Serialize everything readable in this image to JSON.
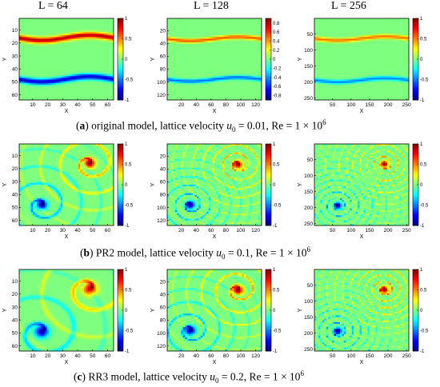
{
  "column_headers": [
    "L = 64",
    "L = 128",
    "L = 256"
  ],
  "captions": [
    {
      "letter": "a",
      "text": " original model, lattice velocity ",
      "u_symbol": "u",
      "u_sub": "0",
      "u_value": " = 0.01, Re = 1 × 10",
      "re_exp": "6"
    },
    {
      "letter": "b",
      "text": " PR2 model, lattice velocity ",
      "u_symbol": "u",
      "u_sub": "0",
      "u_value": " = 0.1, Re = 1 × 10",
      "re_exp": "6"
    },
    {
      "letter": "c",
      "text": " RR3 model, lattice velocity ",
      "u_symbol": "u",
      "u_sub": "0",
      "u_value": " = 0.2, Re = 1 × 10",
      "re_exp": "6"
    }
  ],
  "axis_labels": {
    "x": "X",
    "y": "Y"
  },
  "colormap": [
    "#00007f",
    "#0000ff",
    "#007fff",
    "#00ffff",
    "#7fff7f",
    "#ffff00",
    "#ff7f00",
    "#ff0000",
    "#7f0000"
  ],
  "background_color": "#80ff80",
  "chart_data": [
    {
      "type": "heatmap",
      "row": "a",
      "L": 64,
      "xlim": [
        1,
        64
      ],
      "ylim": [
        1,
        64
      ],
      "xticks": [
        10,
        20,
        30,
        40,
        50,
        60
      ],
      "yticks": [
        10,
        20,
        30,
        40,
        50,
        60
      ],
      "clim": [
        -1,
        1
      ],
      "colorbar_ticks": [
        1,
        0.5,
        0,
        -0.5,
        -1
      ],
      "bands": [
        {
          "amp": 0.9,
          "y0": 16,
          "ya": 2,
          "width": 2.2
        },
        {
          "amp": -0.85,
          "y0": 48,
          "ya": 2,
          "width": 2.2
        }
      ],
      "vortices": []
    },
    {
      "type": "heatmap",
      "row": "a",
      "L": 128,
      "xlim": [
        1,
        128
      ],
      "ylim": [
        1,
        128
      ],
      "xticks": [
        20,
        40,
        60,
        80,
        100,
        120
      ],
      "yticks": [
        20,
        40,
        60,
        80,
        100,
        120
      ],
      "clim": [
        -0.9,
        0.9
      ],
      "colorbar_ticks": [
        0.8,
        0.6,
        0.4,
        0.2,
        0,
        -0.2,
        -0.4,
        -0.6,
        -0.8
      ],
      "bands": [
        {
          "amp": 0.55,
          "y0": 33,
          "ya": 3,
          "width": 3
        },
        {
          "amp": -0.5,
          "y0": 96,
          "ya": 3,
          "width": 3
        }
      ],
      "vortices": []
    },
    {
      "type": "heatmap",
      "row": "a",
      "L": 256,
      "xlim": [
        1,
        256
      ],
      "ylim": [
        1,
        256
      ],
      "xticks": [
        50,
        100,
        150,
        200,
        250
      ],
      "yticks": [
        50,
        100,
        150,
        200,
        250
      ],
      "clim": [
        -1,
        1
      ],
      "colorbar_ticks": [
        1,
        0.5,
        0,
        -0.5,
        -1
      ],
      "bands": [
        {
          "amp": 0.55,
          "y0": 64,
          "ya": 6,
          "width": 6
        },
        {
          "amp": -0.5,
          "y0": 194,
          "ya": 6,
          "width": 6
        }
      ],
      "vortices": []
    },
    {
      "type": "heatmap",
      "row": "b",
      "L": 64,
      "xlim": [
        1,
        64
      ],
      "ylim": [
        1,
        64
      ],
      "xticks": [
        10,
        20,
        30,
        40,
        50,
        60
      ],
      "yticks": [
        10,
        20,
        30,
        40,
        50,
        60
      ],
      "clim": [
        -1,
        1
      ],
      "colorbar_ticks": [
        1,
        0.5,
        0,
        -0.5,
        -1
      ],
      "bands": [],
      "vortices": [
        {
          "cx": 48,
          "cy": 16,
          "amp": 1,
          "core": 3.5,
          "turns": 1.5
        },
        {
          "cx": 16,
          "cy": 48,
          "amp": -1,
          "core": 3.5,
          "turns": 1.5
        }
      ]
    },
    {
      "type": "heatmap",
      "row": "b",
      "L": 128,
      "xlim": [
        1,
        128
      ],
      "ylim": [
        1,
        128
      ],
      "xticks": [
        20,
        40,
        60,
        80,
        100,
        120
      ],
      "yticks": [
        20,
        40,
        60,
        80,
        100,
        120
      ],
      "clim": [
        -1,
        1
      ],
      "colorbar_ticks": [
        1,
        0.5,
        0,
        -0.5,
        -1
      ],
      "bands": [],
      "vortices": [
        {
          "cx": 96,
          "cy": 33,
          "amp": 1,
          "core": 6,
          "turns": 2.5
        },
        {
          "cx": 32,
          "cy": 96,
          "amp": -1,
          "core": 6,
          "turns": 2.5
        }
      ]
    },
    {
      "type": "heatmap",
      "row": "b",
      "L": 256,
      "xlim": [
        1,
        256
      ],
      "ylim": [
        1,
        256
      ],
      "xticks": [
        50,
        100,
        150,
        200,
        250
      ],
      "yticks": [
        50,
        100,
        150,
        200,
        250
      ],
      "clim": [
        -1,
        1
      ],
      "colorbar_ticks": [
        1,
        0.5,
        0,
        -0.5,
        -1
      ],
      "bands": [],
      "vortices": [
        {
          "cx": 190,
          "cy": 64,
          "amp": 1,
          "core": 10,
          "turns": 3
        },
        {
          "cx": 64,
          "cy": 194,
          "amp": -1,
          "core": 10,
          "turns": 3
        }
      ]
    },
    {
      "type": "heatmap",
      "row": "c",
      "L": 64,
      "xlim": [
        1,
        64
      ],
      "ylim": [
        1,
        64
      ],
      "xticks": [
        10,
        20,
        30,
        40,
        50,
        60
      ],
      "yticks": [
        10,
        20,
        30,
        40,
        50,
        60
      ],
      "clim": [
        -1,
        1
      ],
      "colorbar_ticks": [
        1,
        0.5,
        0,
        -0.5,
        -1
      ],
      "bands": [],
      "vortices": [
        {
          "cx": 48,
          "cy": 16,
          "amp": 0.9,
          "core": 4.5,
          "turns": 1.2
        },
        {
          "cx": 16,
          "cy": 49,
          "amp": -0.9,
          "core": 4.5,
          "turns": 1.2
        }
      ]
    },
    {
      "type": "heatmap",
      "row": "c",
      "L": 128,
      "xlim": [
        1,
        128
      ],
      "ylim": [
        1,
        128
      ],
      "xticks": [
        20,
        40,
        60,
        80,
        100,
        120
      ],
      "yticks": [
        20,
        40,
        60,
        80,
        100,
        120
      ],
      "clim": [
        -1,
        1
      ],
      "colorbar_ticks": [
        1,
        0.5,
        0,
        -0.5,
        -1
      ],
      "bands": [],
      "vortices": [
        {
          "cx": 96,
          "cy": 33,
          "amp": 1,
          "core": 7,
          "turns": 2
        },
        {
          "cx": 32,
          "cy": 96,
          "amp": -1,
          "core": 7,
          "turns": 2
        }
      ]
    },
    {
      "type": "heatmap",
      "row": "c",
      "L": 256,
      "xlim": [
        1,
        256
      ],
      "ylim": [
        1,
        256
      ],
      "xticks": [
        50,
        100,
        150,
        200,
        250
      ],
      "yticks": [
        50,
        100,
        150,
        200,
        250
      ],
      "clim": [
        -1,
        1
      ],
      "colorbar_ticks": [
        1,
        0.5,
        0,
        -0.5,
        -1
      ],
      "bands": [],
      "vortices": [
        {
          "cx": 190,
          "cy": 64,
          "amp": 1,
          "core": 11,
          "turns": 3
        },
        {
          "cx": 64,
          "cy": 194,
          "amp": -1,
          "core": 11,
          "turns": 3
        }
      ]
    }
  ]
}
